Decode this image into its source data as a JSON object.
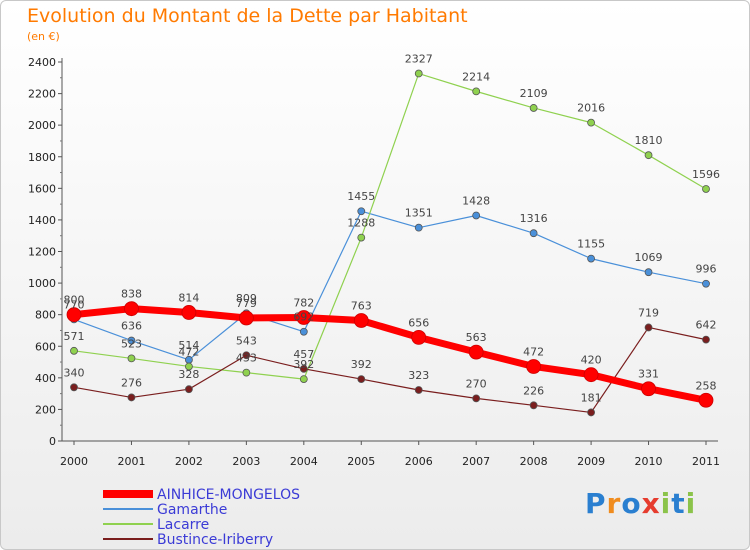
{
  "header": {
    "title": "Evolution du Montant de la Dette par Habitant",
    "subtitle": "(en €)"
  },
  "logo": {
    "letters": [
      "P",
      "r",
      "o",
      "x",
      "i",
      "t",
      "i"
    ],
    "colors": [
      "#2a7fd0",
      "#f08c1e",
      "#2a7fd0",
      "#e63c2e",
      "#8bc34a",
      "#2a7fd0",
      "#8bc34a"
    ]
  },
  "chart_data": {
    "type": "line",
    "x": [
      "2000",
      "2001",
      "2002",
      "2003",
      "2004",
      "2005",
      "2006",
      "2007",
      "2008",
      "2009",
      "2010",
      "2011"
    ],
    "ylim": [
      0,
      2400
    ],
    "yticks": [
      0,
      200,
      400,
      600,
      800,
      1000,
      1200,
      1400,
      1600,
      1800,
      2000,
      2200,
      2400
    ],
    "grid": false,
    "legend_position": "bottom-left",
    "series": [
      {
        "name": "AINHICE-MONGELOS",
        "color": "#ff0000",
        "width": 7,
        "point_r": 7,
        "values": [
          800,
          838,
          814,
          779,
          782,
          763,
          656,
          563,
          472,
          420,
          331,
          258
        ],
        "labels": [
          "800",
          "838",
          "814",
          "779",
          "782",
          "763",
          "656",
          "563",
          "472",
          "420",
          "331",
          "258"
        ]
      },
      {
        "name": "Gamarthe",
        "color": "#4a90d9",
        "width": 1.2,
        "point_r": 3.5,
        "values": [
          770,
          636,
          514,
          809,
          692,
          1455,
          1351,
          1428,
          1316,
          1155,
          1069,
          996
        ],
        "labels": [
          "770",
          "636",
          "514",
          "809",
          "692",
          "1455",
          "1351",
          "1428",
          "1316",
          "1155",
          "1069",
          "996"
        ]
      },
      {
        "name": "Lacarre",
        "color": "#8fd14f",
        "width": 1.2,
        "point_r": 3.5,
        "values": [
          571,
          523,
          472,
          433,
          392,
          1288,
          2327,
          2214,
          2109,
          2016,
          1810,
          1596
        ],
        "labels": [
          "571",
          "523",
          "472",
          "433",
          "392",
          "1288",
          "2327",
          "2214",
          "2109",
          "2016",
          "1810",
          "1596"
        ]
      },
      {
        "name": "Bustince-Iriberry",
        "color": "#7a1e1e",
        "width": 1.2,
        "point_r": 3.5,
        "values": [
          340,
          276,
          328,
          543,
          457,
          392,
          323,
          270,
          226,
          181,
          719,
          642
        ],
        "labels": [
          "340",
          "276",
          "328",
          "543",
          "457",
          "392",
          "323",
          "270",
          "226",
          "181",
          "719",
          "642"
        ]
      }
    ]
  }
}
